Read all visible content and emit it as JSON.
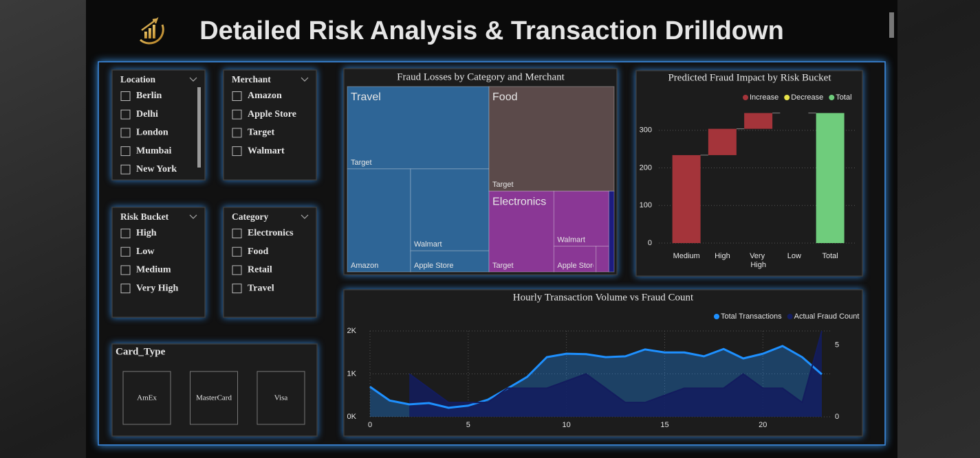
{
  "header": {
    "title": "Detailed Risk Analysis & Transaction Drilldown"
  },
  "slicers": [
    {
      "title": "Location",
      "items": [
        "Berlin",
        "Delhi",
        "London",
        "Mumbai",
        "New York"
      ]
    },
    {
      "title": "Merchant",
      "items": [
        "Amazon",
        "Apple Store",
        "Target",
        "Walmart"
      ]
    },
    {
      "title": "Risk Bucket",
      "items": [
        "High",
        "Low",
        "Medium",
        "Very High"
      ]
    },
    {
      "title": "Category",
      "items": [
        "Electronics",
        "Food",
        "Retail",
        "Travel"
      ]
    }
  ],
  "card_type": {
    "title": "Card_Type",
    "buttons": [
      "AmEx",
      "MasterCard",
      "Visa"
    ]
  },
  "chart_data": [
    {
      "type": "treemap",
      "title": "Fraud Losses by Category and Merchant",
      "groups": [
        {
          "name": "Travel",
          "color": "#2e6596",
          "children": [
            {
              "name": "Target",
              "value": 24.7
            },
            {
              "name": "Amazon",
              "value": 13.8
            },
            {
              "name": "Walmart",
              "value": 13.6
            },
            {
              "name": "Apple Store",
              "value": 3.5
            }
          ]
        },
        {
          "name": "Food",
          "color": "#5b4a4a",
          "children": [
            {
              "name": "Target",
              "value": 27.7
            }
          ]
        },
        {
          "name": "Electronics",
          "color": "#8a3795",
          "children": [
            {
              "name": "Target",
              "value": 11.1
            },
            {
              "name": "Walmart",
              "value": 6.4
            },
            {
              "name": "Apple Store",
              "value": 2.3
            },
            {
              "name": null,
              "value": 0.7
            }
          ]
        },
        {
          "name": null,
          "color": "#1c1c80",
          "children": [
            {
              "name": null,
              "value": 0.9
            }
          ]
        }
      ]
    },
    {
      "type": "waterfall",
      "title": "Predicted Fraud Impact by Risk Bucket",
      "legend": [
        {
          "name": "Increase",
          "color": "#a4343a"
        },
        {
          "name": "Decrease",
          "color": "#e8e34a"
        },
        {
          "name": "Total",
          "color": "#6fcc7c"
        }
      ],
      "categories": [
        "Medium",
        "High",
        "Very High",
        "Low",
        "Total"
      ],
      "values": [
        234,
        70,
        42,
        0,
        346
      ],
      "ylim": [
        0,
        380
      ],
      "yticks": [
        0,
        100,
        200,
        300
      ],
      "grid": true
    },
    {
      "type": "area",
      "title": "Hourly Transaction Volume vs Fraud Count",
      "x": [
        0,
        1,
        2,
        3,
        4,
        5,
        6,
        7,
        8,
        9,
        10,
        11,
        12,
        13,
        14,
        15,
        16,
        17,
        18,
        19,
        20,
        21,
        22,
        23
      ],
      "series": [
        {
          "name": "Total Transactions",
          "color": "#1e90ff",
          "values": [
            700,
            380,
            290,
            320,
            210,
            260,
            400,
            660,
            930,
            1390,
            1470,
            1460,
            1390,
            1410,
            1570,
            1500,
            1500,
            1410,
            1580,
            1360,
            1470,
            1650,
            1390,
            990
          ]
        },
        {
          "name": "Actual Fraud Count",
          "color": "#131c5e",
          "axis": "y2",
          "values": [
            null,
            null,
            3,
            2,
            1,
            1,
            1,
            2,
            2,
            2,
            2.5,
            3,
            2,
            1,
            1,
            1.5,
            2,
            2,
            2,
            3,
            2,
            2,
            1,
            6
          ]
        }
      ],
      "xlim": [
        0,
        23
      ],
      "xticks": [
        0,
        5,
        10,
        15,
        20
      ],
      "ylim": [
        0,
        2000
      ],
      "yticks": [
        {
          "value": 0,
          "label": "0K"
        },
        {
          "value": 1000,
          "label": "1K"
        },
        {
          "value": 2000,
          "label": "2K"
        }
      ],
      "y2lim": [
        0,
        6
      ],
      "y2ticks": [
        0,
        5
      ],
      "grid": true
    }
  ]
}
